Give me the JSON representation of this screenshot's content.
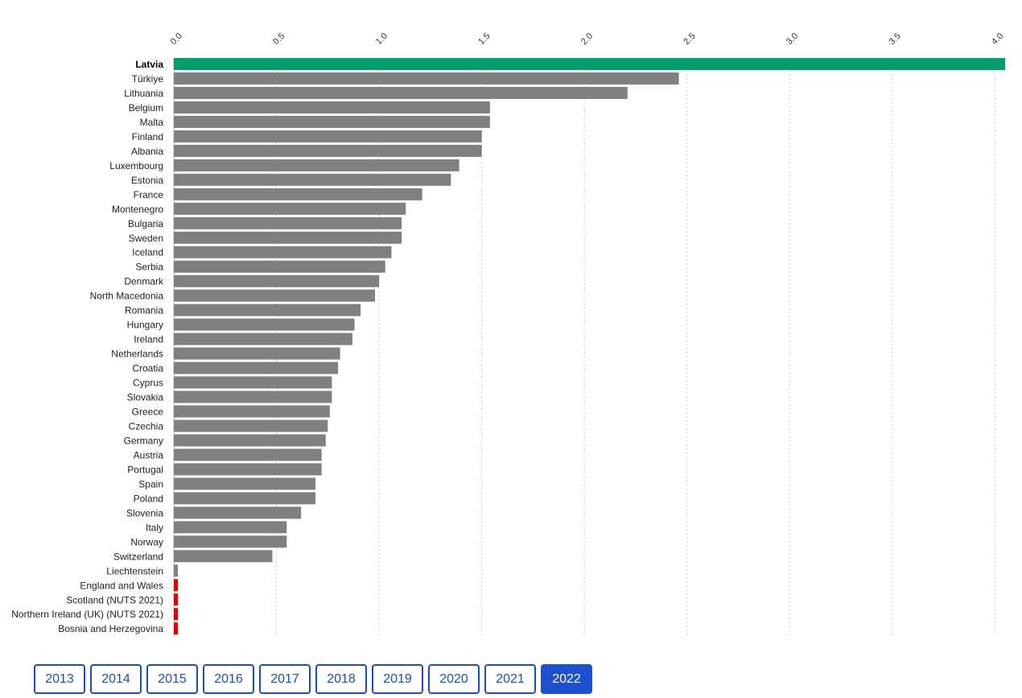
{
  "chart_data": {
    "type": "bar",
    "orientation": "horizontal",
    "title": "",
    "xlabel": "",
    "ylabel": "",
    "xlim": [
      0,
      4.05
    ],
    "x_ticks": [
      "0.0",
      "0.5",
      "1.0",
      "1.5",
      "2.0",
      "2.5",
      "3.0",
      "3.5",
      "4.0"
    ],
    "x_tick_values": [
      0,
      0.5,
      1.0,
      1.5,
      2.0,
      2.5,
      3.0,
      3.5,
      4.0
    ],
    "grid": "vertical dotted",
    "colors": {
      "highlight": "#069c6e",
      "default": "#808080",
      "no_data": "#e60000",
      "grid": "#cccccc"
    },
    "categories": [
      {
        "name": "Latvia",
        "value": 4.05,
        "style": "highlight"
      },
      {
        "name": "Türkiye",
        "value": 2.46,
        "style": "default"
      },
      {
        "name": "Lithuania",
        "value": 2.21,
        "style": "default"
      },
      {
        "name": "Belgium",
        "value": 1.54,
        "style": "default"
      },
      {
        "name": "Malta",
        "value": 1.54,
        "style": "default"
      },
      {
        "name": "Finland",
        "value": 1.5,
        "style": "default"
      },
      {
        "name": "Albania",
        "value": 1.5,
        "style": "default"
      },
      {
        "name": "Luxembourg",
        "value": 1.39,
        "style": "default"
      },
      {
        "name": "Estonia",
        "value": 1.35,
        "style": "default"
      },
      {
        "name": "France",
        "value": 1.21,
        "style": "default"
      },
      {
        "name": "Montenegro",
        "value": 1.13,
        "style": "default"
      },
      {
        "name": "Bulgaria",
        "value": 1.11,
        "style": "default"
      },
      {
        "name": "Sweden",
        "value": 1.11,
        "style": "default"
      },
      {
        "name": "Iceland",
        "value": 1.06,
        "style": "default"
      },
      {
        "name": "Serbia",
        "value": 1.03,
        "style": "default"
      },
      {
        "name": "Denmark",
        "value": 1.0,
        "style": "default"
      },
      {
        "name": "North Macedonia",
        "value": 0.98,
        "style": "default"
      },
      {
        "name": "Romania",
        "value": 0.91,
        "style": "default"
      },
      {
        "name": "Hungary",
        "value": 0.88,
        "style": "default"
      },
      {
        "name": "Ireland",
        "value": 0.87,
        "style": "default"
      },
      {
        "name": "Netherlands",
        "value": 0.81,
        "style": "default"
      },
      {
        "name": "Croatia",
        "value": 0.8,
        "style": "default"
      },
      {
        "name": "Cyprus",
        "value": 0.77,
        "style": "default"
      },
      {
        "name": "Slovakia",
        "value": 0.77,
        "style": "default"
      },
      {
        "name": "Greece",
        "value": 0.76,
        "style": "default"
      },
      {
        "name": "Czechia",
        "value": 0.75,
        "style": "default"
      },
      {
        "name": "Germany",
        "value": 0.74,
        "style": "default"
      },
      {
        "name": "Austria",
        "value": 0.72,
        "style": "default"
      },
      {
        "name": "Portugal",
        "value": 0.72,
        "style": "default"
      },
      {
        "name": "Spain",
        "value": 0.69,
        "style": "default"
      },
      {
        "name": "Poland",
        "value": 0.69,
        "style": "default"
      },
      {
        "name": "Slovenia",
        "value": 0.62,
        "style": "default"
      },
      {
        "name": "Italy",
        "value": 0.55,
        "style": "default"
      },
      {
        "name": "Norway",
        "value": 0.55,
        "style": "default"
      },
      {
        "name": "Switzerland",
        "value": 0.48,
        "style": "default"
      },
      {
        "name": "Liechtenstein",
        "value": 0.02,
        "style": "default"
      },
      {
        "name": "England and Wales",
        "value": 0.02,
        "style": "no_data"
      },
      {
        "name": "Scotland (NUTS 2021)",
        "value": 0.02,
        "style": "no_data"
      },
      {
        "name": "Northern Ireland (UK) (NUTS 2021)",
        "value": 0.02,
        "style": "no_data"
      },
      {
        "name": "Bosnia and Herzegovina",
        "value": 0.02,
        "style": "no_data"
      }
    ]
  },
  "years": [
    "2013",
    "2014",
    "2015",
    "2016",
    "2017",
    "2018",
    "2019",
    "2020",
    "2021",
    "2022"
  ],
  "selected_year": "2022"
}
